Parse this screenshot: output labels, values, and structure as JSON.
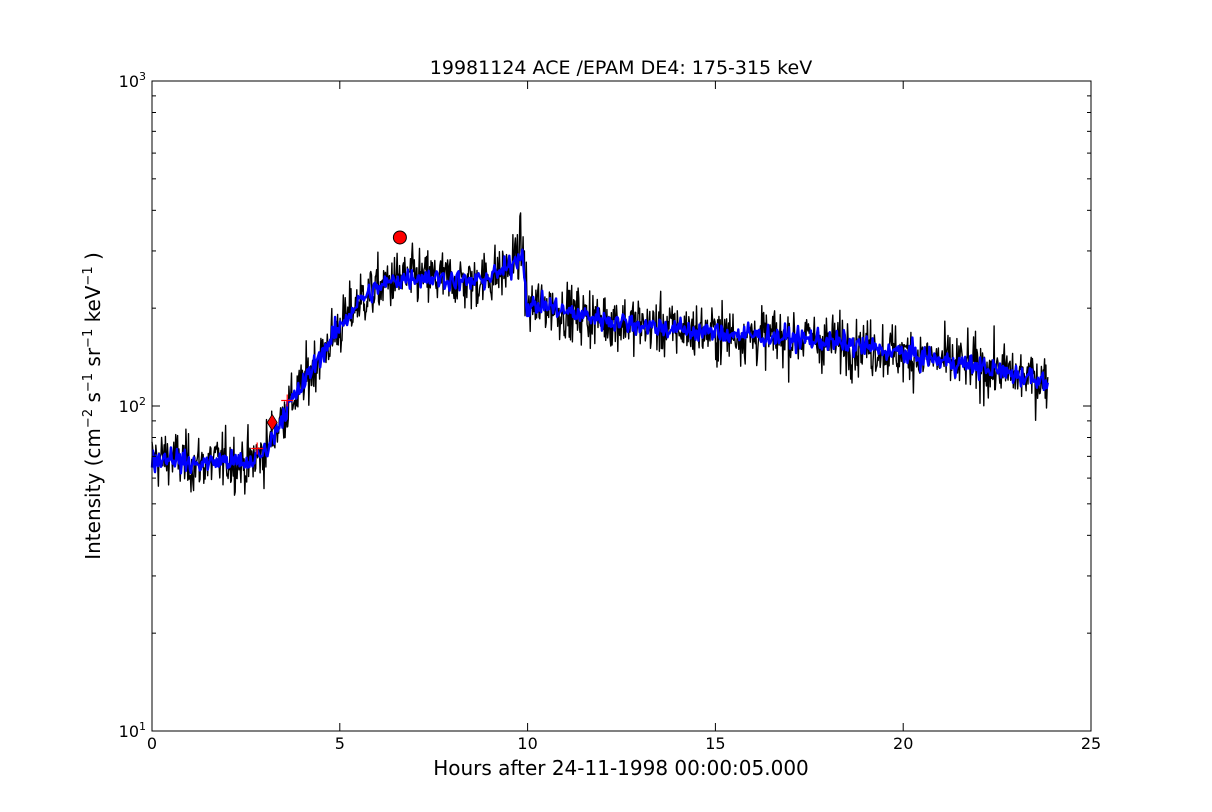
{
  "chart_data": {
    "type": "line",
    "title": "19981124 ACE /EPAM DE4: 175-315 keV",
    "xlabel": "Hours after 24-11-1998 00:00:05.000",
    "ylabel_main": "Intensity (cm",
    "ylabel_parts": {
      "exp_cm": "−2",
      "s": " s",
      "exp_s": "−1",
      "sr": " sr",
      "exp_sr": "−1",
      "kev": " keV",
      "exp_kev": "−1",
      "close": " )"
    },
    "xlim": [
      0,
      25
    ],
    "ylim": [
      10,
      1000
    ],
    "yscale": "log",
    "grid": false,
    "x_ticks": [
      0,
      5,
      10,
      15,
      20,
      25
    ],
    "x_tick_labels": [
      "0",
      "5",
      "10",
      "15",
      "20",
      "25"
    ],
    "y_ticks": [
      10,
      100,
      1000
    ],
    "y_tick_labels": [
      {
        "base": "10",
        "exp": "1"
      },
      {
        "base": "10",
        "exp": "2"
      },
      {
        "base": "10",
        "exp": "3"
      }
    ],
    "series": [
      {
        "color": "#000000",
        "style": "raw-noisy",
        "x": [
          0.0,
          0.5,
          1.0,
          1.5,
          2.0,
          2.5,
          3.0,
          3.2,
          3.5,
          4.0,
          4.5,
          5.0,
          5.5,
          6.0,
          6.5,
          7.0,
          7.5,
          8.0,
          8.5,
          9.0,
          9.5,
          9.85,
          10.0,
          10.5,
          11.0,
          12.0,
          13.0,
          14.0,
          15.0,
          16.0,
          17.0,
          18.0,
          19.0,
          20.0,
          21.0,
          22.0,
          23.0,
          23.85
        ],
        "values": [
          68,
          70,
          66,
          67,
          68,
          66,
          72,
          80,
          95,
          115,
          145,
          175,
          210,
          230,
          245,
          250,
          248,
          245,
          240,
          250,
          265,
          310,
          200,
          205,
          195,
          185,
          178,
          172,
          168,
          165,
          162,
          158,
          152,
          145,
          138,
          132,
          125,
          120
        ]
      },
      {
        "color": "#0000ff",
        "style": "smoothed",
        "x": [
          0.0,
          0.5,
          1.0,
          1.5,
          2.0,
          2.5,
          3.0,
          3.2,
          3.5,
          4.0,
          4.5,
          5.0,
          5.5,
          6.0,
          6.5,
          7.0,
          7.5,
          8.0,
          8.5,
          9.0,
          9.5,
          9.85,
          10.0,
          10.5,
          11.0,
          12.0,
          13.0,
          14.0,
          15.0,
          16.0,
          17.0,
          18.0,
          19.0,
          20.0,
          21.0,
          22.0,
          23.0,
          23.85
        ],
        "values": [
          68,
          70,
          66,
          67,
          68,
          66,
          72,
          80,
          95,
          115,
          145,
          175,
          210,
          230,
          245,
          250,
          248,
          245,
          240,
          250,
          265,
          300,
          200,
          205,
          195,
          185,
          178,
          172,
          168,
          165,
          162,
          158,
          152,
          145,
          138,
          132,
          125,
          120
        ]
      }
    ],
    "markers": [
      {
        "shape": "circle",
        "x": 6.6,
        "y": 330,
        "color": "#ff0000"
      },
      {
        "shape": "diamond",
        "x": 3.2,
        "y": 89,
        "color": "#ff0000"
      },
      {
        "shape": "plus",
        "x": 2.8,
        "y": 74,
        "color": "#ff0000"
      },
      {
        "shape": "plus",
        "x": 3.6,
        "y": 104,
        "color": "#ff0000"
      }
    ]
  }
}
